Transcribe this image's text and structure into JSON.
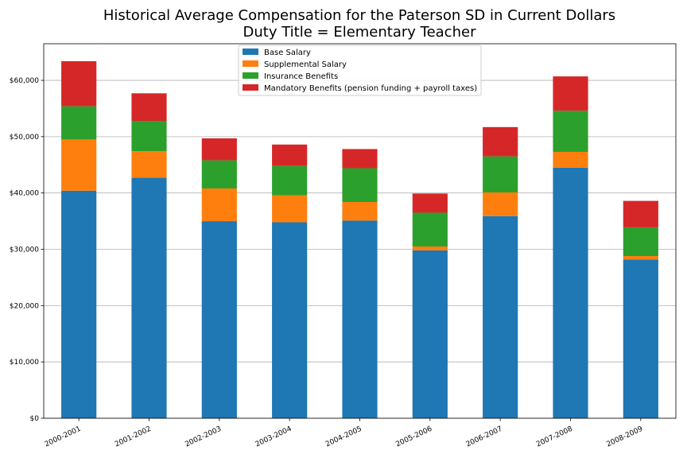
{
  "chart_data": {
    "type": "bar",
    "stacked": true,
    "title": "Historical Average Compensation for the Paterson SD in Current Dollars",
    "subtitle": "Duty Title = Elementary Teacher",
    "xlabel": "",
    "ylabel": "",
    "ylim": [
      0,
      66500
    ],
    "yticks": [
      {
        "value": 0,
        "label": "$0"
      },
      {
        "value": 10000,
        "label": "$10,000"
      },
      {
        "value": 20000,
        "label": "$20,000"
      },
      {
        "value": 30000,
        "label": "$30,000"
      },
      {
        "value": 40000,
        "label": "$40,000"
      },
      {
        "value": 50000,
        "label": "$50,000"
      },
      {
        "value": 60000,
        "label": "$60,000"
      }
    ],
    "grid": "horizontal",
    "legend_position": "top-center",
    "categories": [
      "2000-2001",
      "2001-2002",
      "2002-2003",
      "2003-2004",
      "2004-2005",
      "2005-2006",
      "2006-2007",
      "2007-2008",
      "2008-2009"
    ],
    "series": [
      {
        "name": "Base Salary",
        "color": "#1f77b4",
        "values": [
          40400,
          42700,
          35000,
          34800,
          35100,
          29800,
          35900,
          44500,
          28200
        ]
      },
      {
        "name": "Supplemental Salary",
        "color": "#ff7f0e",
        "values": [
          9100,
          4700,
          5800,
          4800,
          3300,
          700,
          4200,
          2800,
          600
        ]
      },
      {
        "name": "Insurance Benefits",
        "color": "#2ca02c",
        "values": [
          5900,
          5400,
          5000,
          5200,
          6000,
          6000,
          6400,
          7300,
          5100
        ]
      },
      {
        "name": "Mandatory Benefits (pension funding + payroll taxes)",
        "color": "#d62728",
        "values": [
          8000,
          4900,
          3900,
          3800,
          3400,
          3400,
          5200,
          6100,
          4700
        ]
      }
    ]
  }
}
